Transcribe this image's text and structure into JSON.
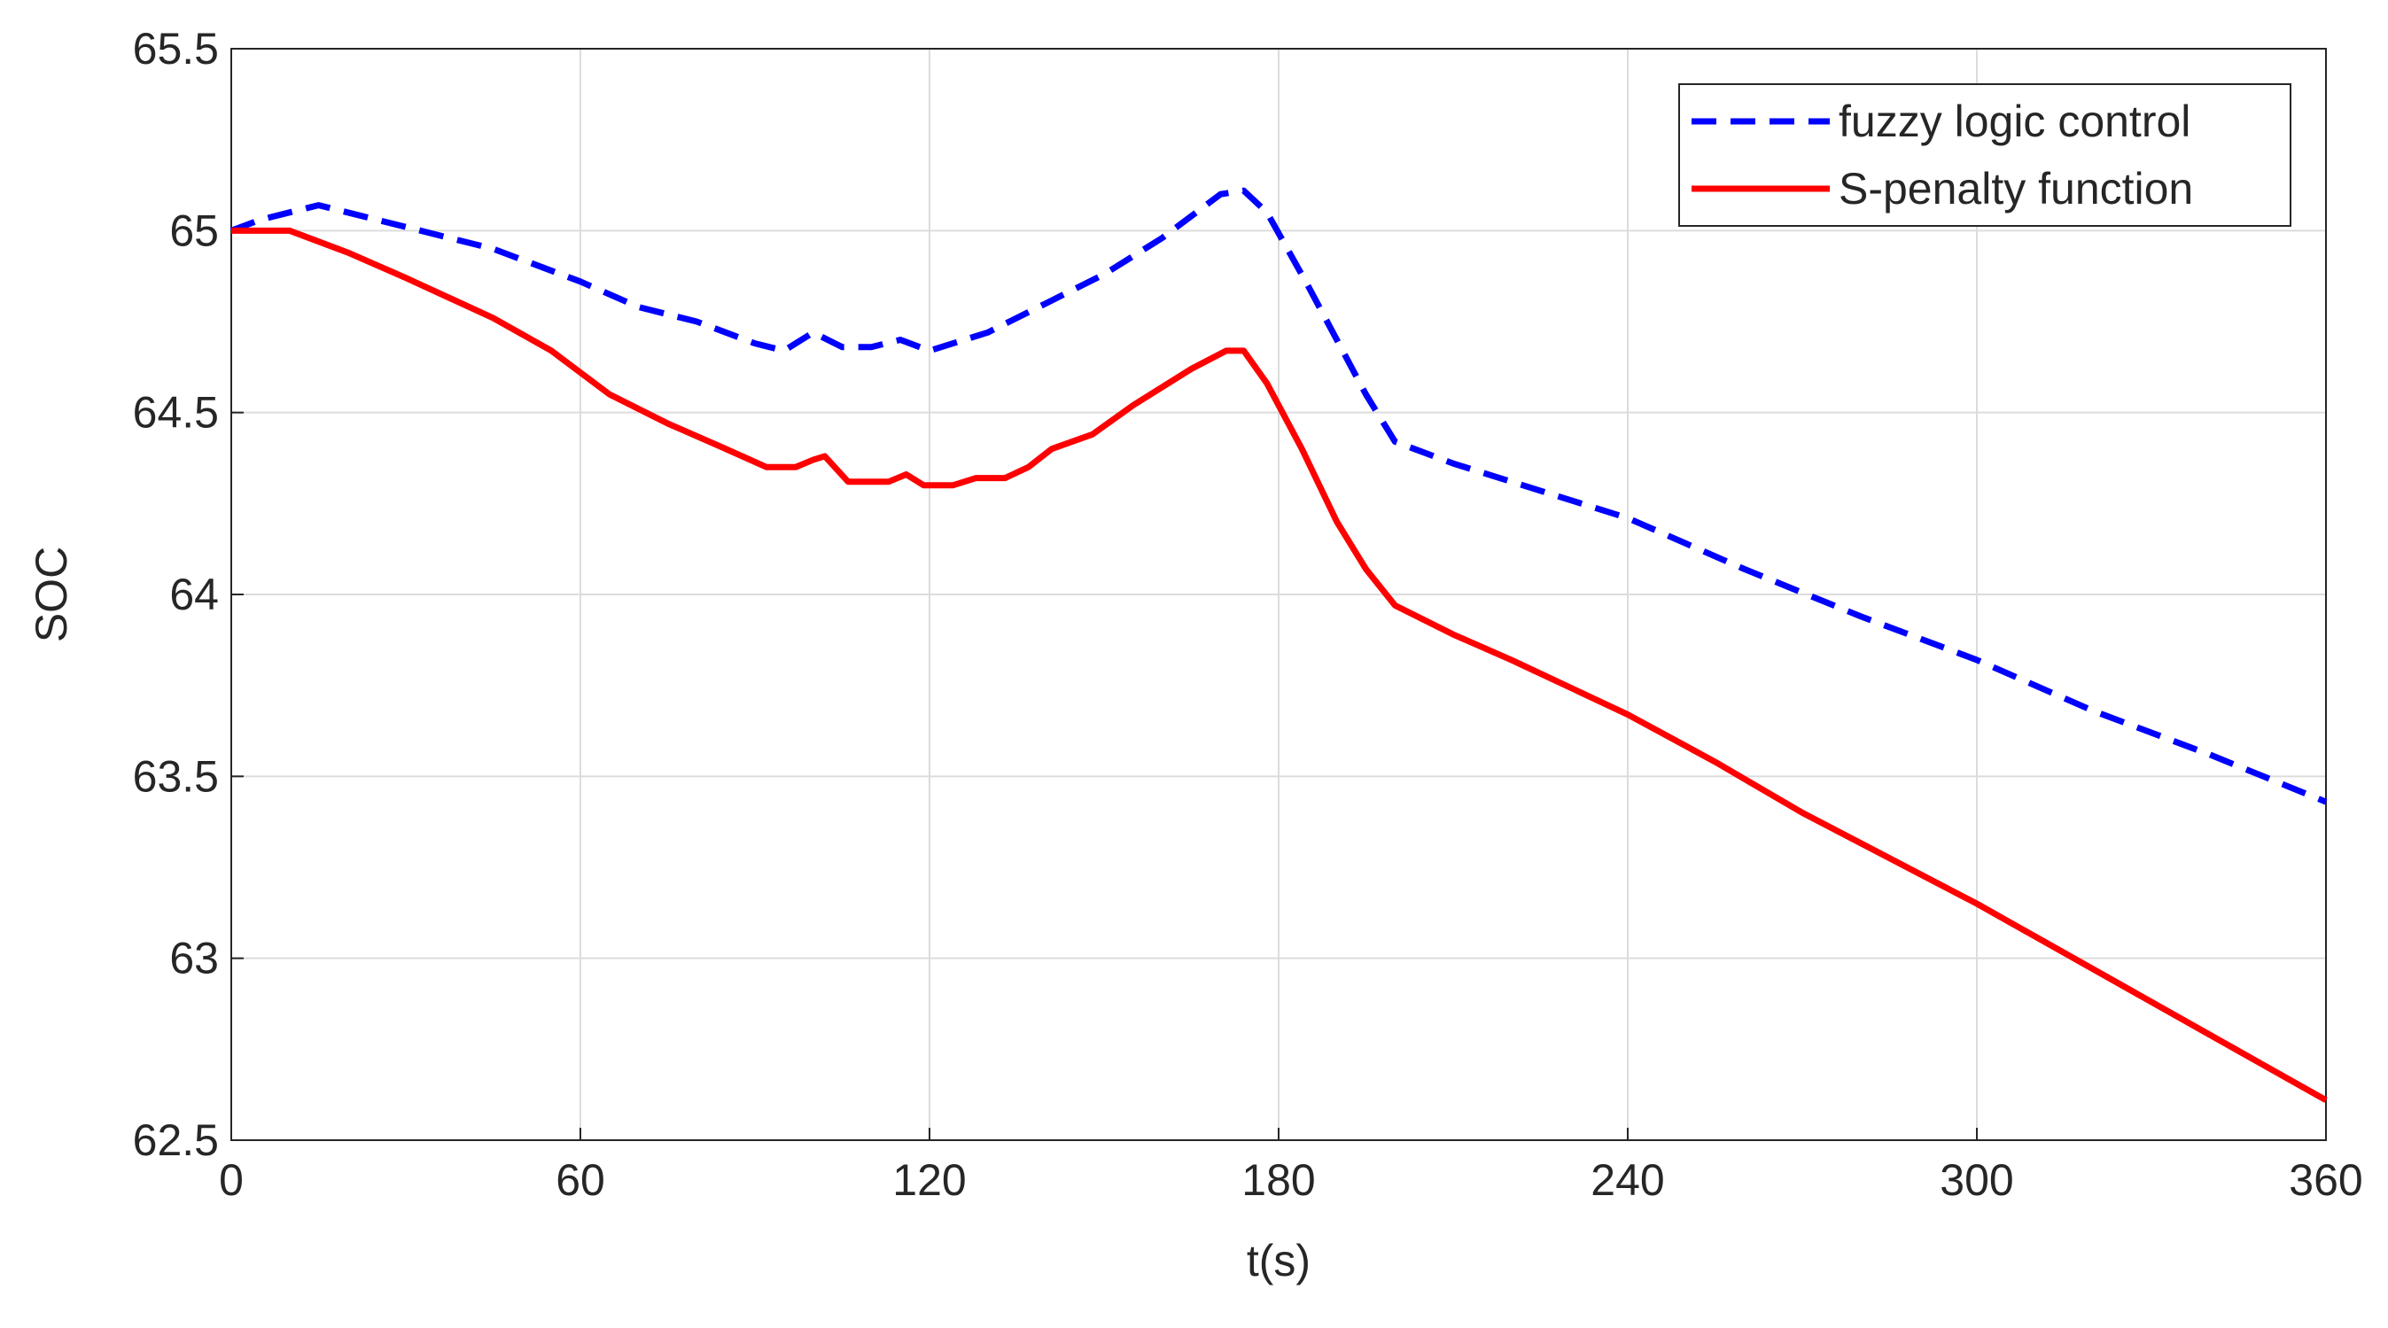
{
  "chart_data": {
    "type": "line",
    "x_label": "t(s)",
    "y_label": "SOC",
    "xlim": [
      0,
      360
    ],
    "xticks": [
      0,
      60,
      120,
      180,
      240,
      300,
      360
    ],
    "ylim": [
      62.5,
      65.5
    ],
    "yticks": [
      62.5,
      63,
      63.5,
      64,
      64.5,
      65,
      65.5
    ],
    "grid": true,
    "legend": "upper right",
    "series": [
      {
        "name": "fuzzy logic control",
        "color": "#0000ff",
        "dash": true,
        "x": [
          0,
          5,
          15,
          30,
          45,
          60,
          70,
          80,
          90,
          95,
          100,
          105,
          110,
          115,
          120,
          130,
          140,
          150,
          160,
          170,
          174,
          178,
          185,
          190,
          195,
          200,
          210,
          220,
          240,
          260,
          280,
          300,
          320,
          340,
          360
        ],
        "values": [
          65.0,
          65.03,
          65.07,
          65.01,
          64.95,
          64.86,
          64.79,
          64.75,
          64.69,
          64.67,
          64.72,
          64.68,
          64.68,
          64.7,
          64.67,
          64.72,
          64.8,
          64.88,
          64.98,
          65.1,
          65.11,
          65.05,
          64.85,
          64.7,
          64.55,
          64.42,
          64.36,
          64.31,
          64.21,
          64.07,
          63.94,
          63.82,
          63.68,
          63.56,
          63.43
        ]
      },
      {
        "name": "S-penalty function",
        "color": "#ff0000",
        "dash": false,
        "x": [
          0,
          10,
          20,
          30,
          45,
          55,
          65,
          75,
          85,
          92,
          97,
          100,
          102,
          106,
          113,
          116,
          119,
          124,
          128,
          133,
          137,
          141,
          148,
          155,
          165,
          171,
          174,
          178,
          184,
          190,
          195,
          200,
          210,
          220,
          240,
          255,
          270,
          300,
          330,
          360
        ],
        "values": [
          65.0,
          65.0,
          64.94,
          64.87,
          64.76,
          64.67,
          64.55,
          64.47,
          64.4,
          64.35,
          64.35,
          64.37,
          64.38,
          64.31,
          64.31,
          64.33,
          64.3,
          64.3,
          64.32,
          64.32,
          64.35,
          64.4,
          64.44,
          64.52,
          64.62,
          64.67,
          64.67,
          64.58,
          64.4,
          64.2,
          64.07,
          63.97,
          63.89,
          63.82,
          63.67,
          63.54,
          63.4,
          63.15,
          62.88,
          62.61
        ]
      }
    ]
  }
}
